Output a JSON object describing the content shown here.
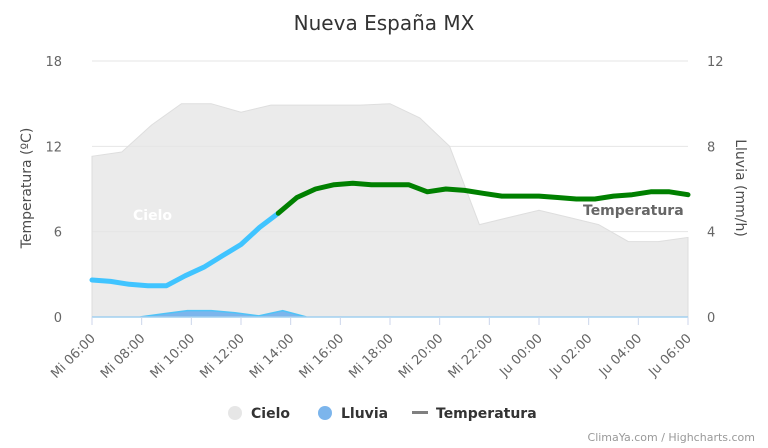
{
  "chart_data": {
    "type": "area",
    "title": "Nueva España MX",
    "x_labels": [
      "Mi 06:00",
      "Mi 08:00",
      "Mi 10:00",
      "Mi 12:00",
      "Mi 14:00",
      "Mi 16:00",
      "Mi 18:00",
      "Mi 20:00",
      "Mi 22:00",
      "Ju 00:00",
      "Ju 02:00",
      "Ju 04:00",
      "Ju 06:00"
    ],
    "y_left": {
      "label": "Temperatura (ºC)",
      "range": [
        0,
        18
      ],
      "ticks": [
        "0",
        "6",
        "12",
        "18"
      ]
    },
    "y_right": {
      "label": "Lluvia (mm/h)",
      "range": [
        0,
        12
      ],
      "ticks": [
        "0",
        "4",
        "8",
        "12"
      ]
    },
    "grid": true,
    "series": [
      {
        "name": "Cielo",
        "axis": "left",
        "color": "#e6e6e6",
        "values": [
          11.3,
          11.6,
          13.5,
          15.0,
          15.0,
          14.4,
          14.9,
          14.9,
          14.9,
          14.9,
          15.0,
          14.0,
          12.0,
          6.5,
          7.0,
          7.5,
          7.0,
          6.5,
          5.3,
          5.3,
          5.6
        ]
      },
      {
        "name": "Lluvia",
        "axis": "right",
        "color": "#7cb5ec",
        "values": [
          0,
          0,
          0,
          0.15,
          0.3,
          0.3,
          0.2,
          0.05,
          0.3,
          0,
          0,
          0,
          0,
          0,
          0,
          0,
          0,
          0,
          0,
          0,
          0,
          0,
          0,
          0,
          0,
          0
        ]
      },
      {
        "name": "Temperatura",
        "axis": "left",
        "colors": {
          "cold": "#40c4ff",
          "warm": "#008000"
        },
        "values": [
          2.6,
          2.5,
          2.3,
          2.2,
          2.2,
          2.9,
          3.5,
          4.3,
          5.1,
          6.3,
          7.3,
          8.4,
          9.0,
          9.3,
          9.4,
          9.3,
          9.3,
          9.3,
          8.8,
          9.0,
          8.9,
          8.7,
          8.5,
          8.5,
          8.5,
          8.4,
          8.3,
          8.3,
          8.5,
          8.6,
          8.8,
          8.8,
          8.6
        ]
      }
    ],
    "annotations": [
      "Cielo",
      "Temperatura"
    ],
    "legend": {
      "placement": "bottom",
      "items": [
        "Cielo",
        "Lluvia",
        "Temperatura"
      ]
    },
    "credits": "ClimaYa.com / Highcharts.com"
  }
}
